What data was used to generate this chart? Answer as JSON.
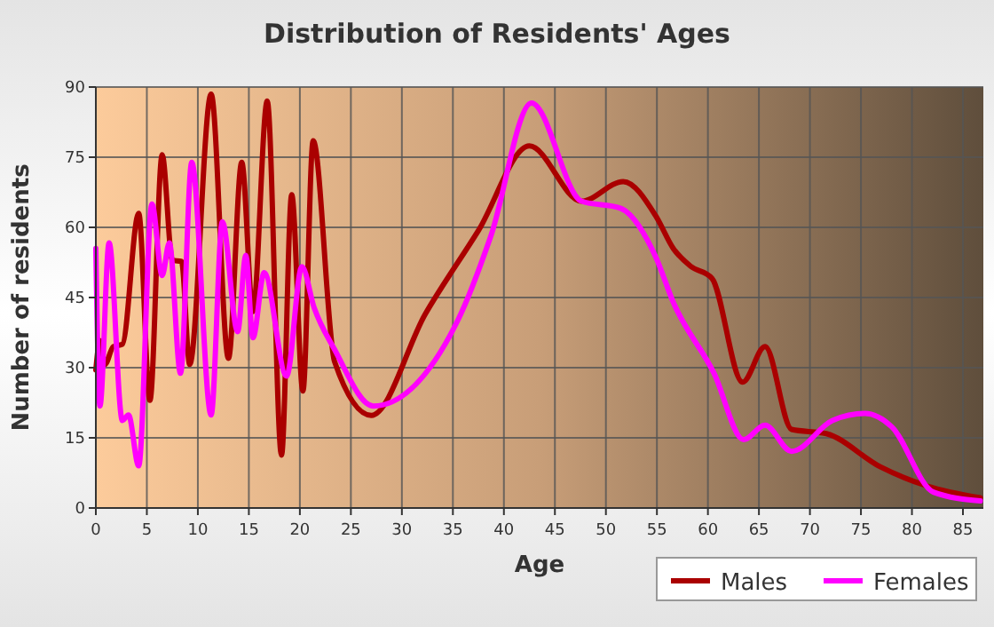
{
  "chart_data": {
    "type": "line",
    "title": "Distribution of Residents' Ages",
    "xlabel": "Age",
    "ylabel": "Number of residents",
    "xlim": [
      0,
      87
    ],
    "xticks": [
      0,
      5,
      10,
      15,
      20,
      25,
      30,
      35,
      40,
      45,
      50,
      55,
      60,
      65,
      70,
      75,
      80,
      85
    ],
    "ylim": [
      0,
      90
    ],
    "yticks": [
      0,
      15,
      30,
      45,
      60,
      75,
      90
    ],
    "grid": true,
    "legend": "bottom right",
    "marker": "none",
    "line_style": "solid",
    "series": [
      {
        "name": "Males",
        "color": "#aa0000",
        "x": [
          0,
          0.4,
          0.9,
          1.7,
          2.6,
          4.2,
          5.3,
          6.5,
          7.5,
          8.4,
          9.2,
          11.3,
          13,
          14.3,
          15.4,
          16.8,
          18.2,
          19.2,
          20.3,
          21.3,
          23.4,
          27,
          32.3,
          37.5,
          42.5,
          47.6,
          51.7,
          54.9,
          56.6,
          58.3,
          60.4,
          63.4,
          65.6,
          68.2,
          71.6,
          76.9,
          81.5,
          86.7
        ],
        "values": [
          29.5,
          35.8,
          30.7,
          34.5,
          35,
          63,
          23,
          75.5,
          53,
          52.7,
          30.7,
          88.5,
          32,
          73.9,
          42,
          87,
          11.3,
          67,
          25,
          78.5,
          31.3,
          19.8,
          41.5,
          59.3,
          77.4,
          65.6,
          69.8,
          62.4,
          55.5,
          51.7,
          49.1,
          26.9,
          34.5,
          16.8,
          15.9,
          8.8,
          4.7,
          2.2
        ]
      },
      {
        "name": "Females",
        "color": "#ff00ff",
        "x": [
          0,
          0.4,
          1.3,
          2.6,
          3.2,
          4.2,
          5.5,
          6.5,
          7.2,
          8.3,
          9.4,
          11.3,
          12.4,
          13.9,
          14.7,
          15.4,
          16.5,
          18.7,
          20.2,
          21.4,
          23.4,
          27.2,
          35.5,
          38.7,
          42.7,
          47.6,
          51.4,
          54.9,
          56.6,
          60.6,
          63.5,
          65.6,
          68.2,
          72.2,
          75.4,
          78,
          82.1,
          86.7
        ],
        "values": [
          55.5,
          21.8,
          56.7,
          18.7,
          19.9,
          9,
          65,
          49.7,
          56.7,
          28.8,
          73.9,
          19.9,
          61.2,
          37.7,
          54,
          36.4,
          50.3,
          28.2,
          51.6,
          42.8,
          33.9,
          21.8,
          40.2,
          58,
          86.6,
          65.6,
          64.1,
          53.6,
          44,
          28.8,
          14.6,
          17.7,
          12.1,
          18.7,
          20.2,
          17.4,
          3.4,
          1.5
        ]
      }
    ]
  }
}
